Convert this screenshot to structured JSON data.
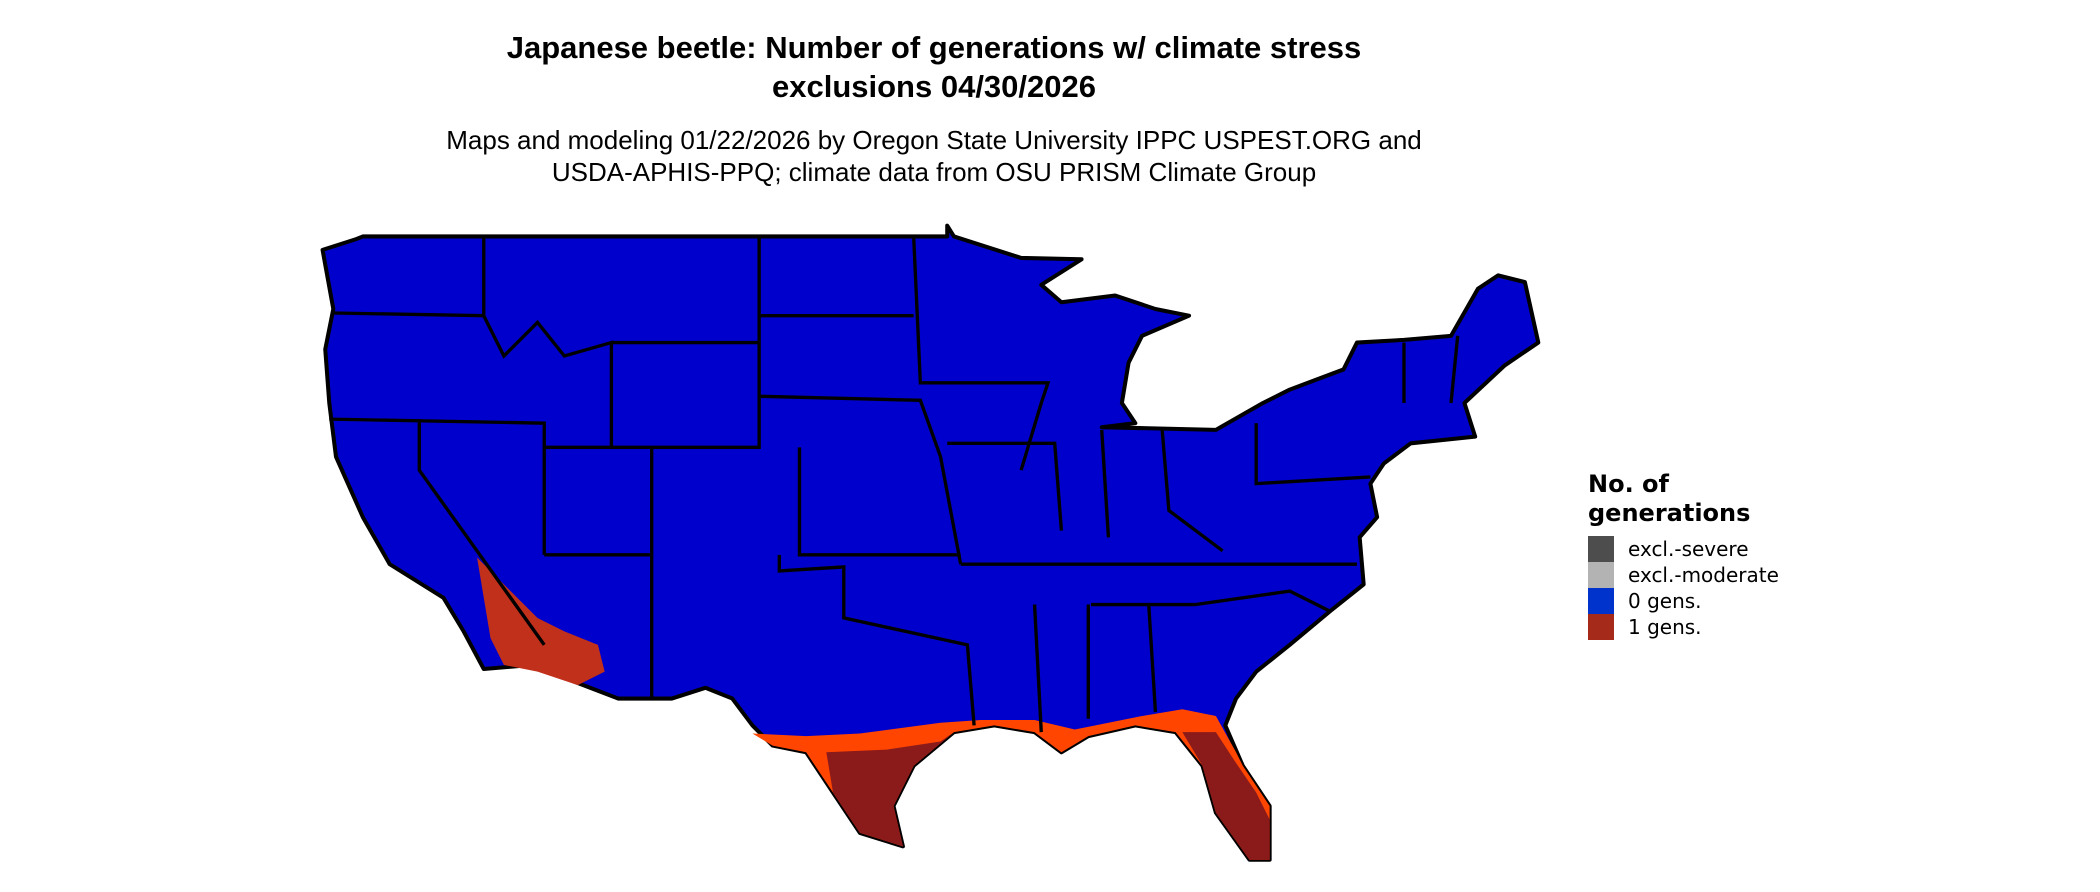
{
  "title_lines": [
    "Japanese beetle: Number of generations w/ climate stress",
    "exclusions 04/30/2026"
  ],
  "subtitle_lines": [
    "Maps and modeling 01/22/2026 by Oregon State University IPPC USPEST.ORG and",
    "USDA-APHIS-PPQ; climate data from OSU PRISM Climate Group"
  ],
  "legend": {
    "title_lines": [
      "No. of",
      "generations"
    ],
    "items": [
      {
        "label": "excl.-severe",
        "color": "#4D4D4D"
      },
      {
        "label": "excl.-moderate",
        "color": "#B3B3B3"
      },
      {
        "label": "0 gens.",
        "color": "#0033CC"
      },
      {
        "label": "1 gens.",
        "color": "#A52A1A"
      }
    ]
  },
  "map_colors": {
    "zero_gens_fill": "#0000CC",
    "one_gen_fill": "#8B1A1A",
    "transition_fill": "#FF4500",
    "borders": "#000000"
  }
}
